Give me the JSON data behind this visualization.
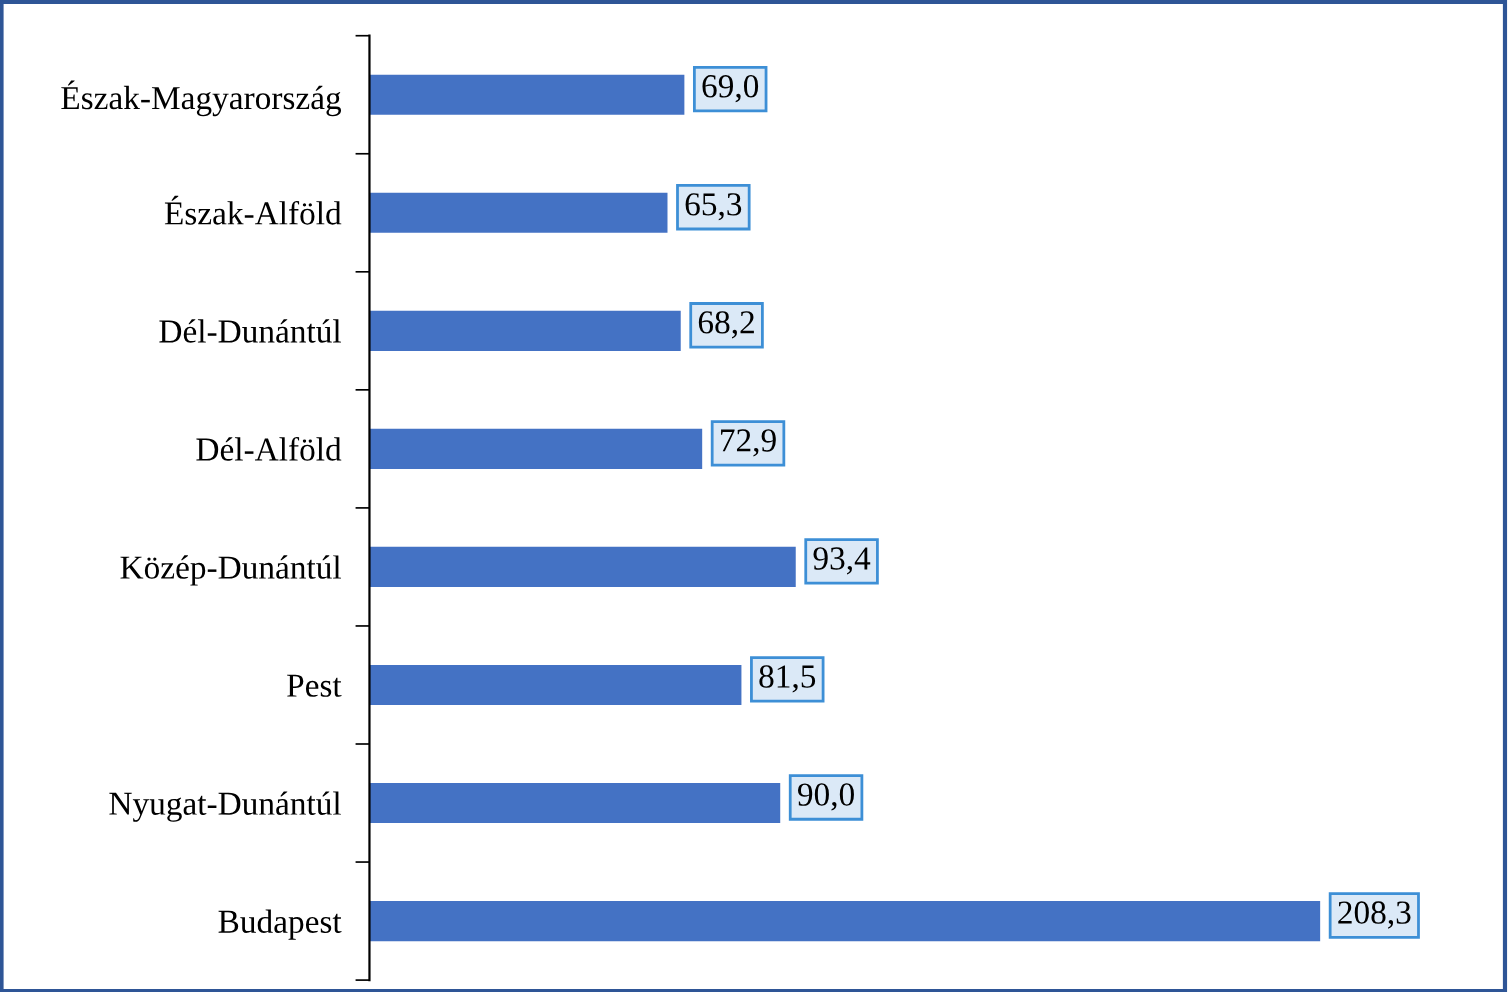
{
  "chart_data": {
    "type": "bar",
    "orientation": "horizontal",
    "categories": [
      "Észak-Magyarország",
      "Észak-Alföld",
      "Dél-Dunántúl",
      "Dél-Alföld",
      "Közép-Dunántúl",
      "Pest",
      "Nyugat-Dunántúl",
      "Budapest"
    ],
    "values": [
      69.0,
      65.3,
      68.2,
      72.9,
      93.4,
      81.5,
      90.0,
      208.3
    ],
    "value_labels": [
      "69,0",
      "65,3",
      "68,2",
      "72,9",
      "93,4",
      "81,5",
      "90,0",
      "208,3"
    ],
    "color": "#4472c4",
    "grid": false,
    "legend": false
  }
}
